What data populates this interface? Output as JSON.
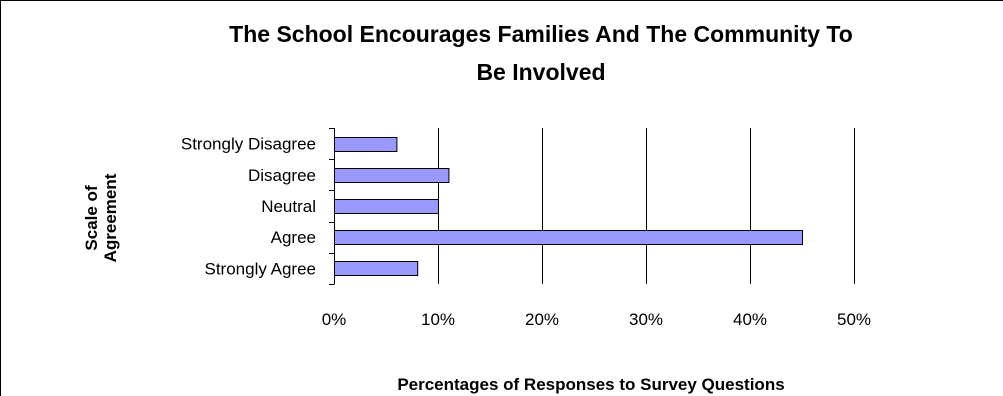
{
  "chart_data": {
    "type": "bar",
    "orientation": "horizontal",
    "title": "The School Encourages Families And The Community To Be Involved",
    "title_lines": [
      "The School Encourages Families And The Community To",
      "Be Involved"
    ],
    "xlabel": "Percentages of Responses to Survey Questions",
    "ylabel": "Scale of Agreement",
    "ylabel_lines": [
      "Scale of",
      "Agreement"
    ],
    "categories": [
      "Strongly Disagree",
      "Disagree",
      "Neutral",
      "Agree",
      "Strongly Agree"
    ],
    "values": [
      6,
      11,
      10,
      45,
      8
    ],
    "xlim": [
      0,
      50
    ],
    "xticks": [
      0,
      10,
      20,
      30,
      40,
      50
    ],
    "xtick_labels": [
      "0%",
      "10%",
      "20%",
      "30%",
      "40%",
      "50%"
    ],
    "grid": "vertical",
    "legend": "none",
    "bar_color": "#9999ff",
    "bar_edge_color": "#000000",
    "gridline_color": "#000000"
  }
}
